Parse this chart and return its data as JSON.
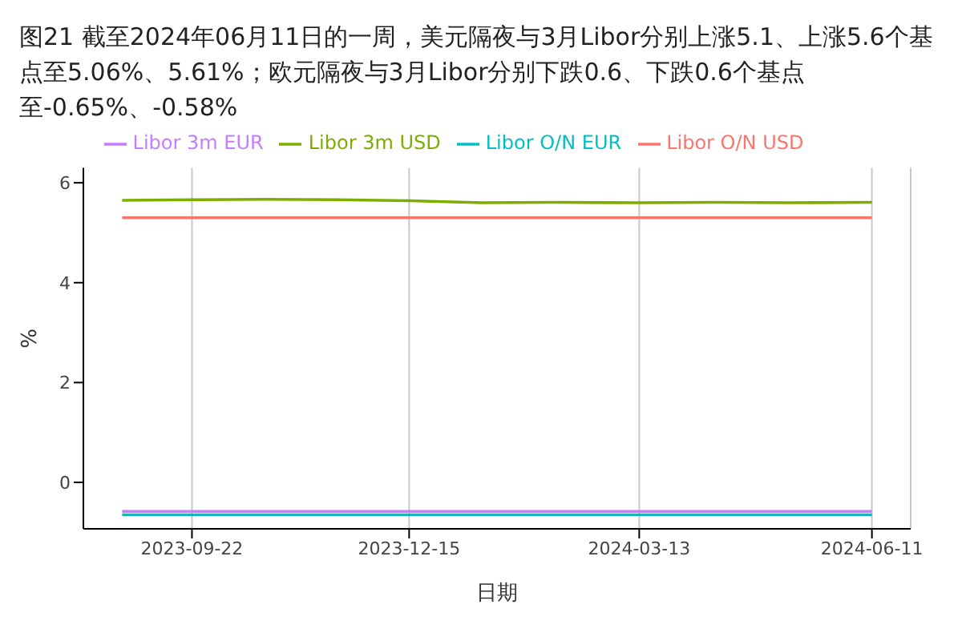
{
  "chart_data": {
    "type": "line",
    "title": "图21  截至2024年06月11日的一周，美元隔夜与3月Libor分别上涨5.1、上涨5.6个基点至5.06%、5.61%；欧元隔夜与3月Libor分别下跌0.6、下跌0.6个基点至-0.65%、-0.58%",
    "xlabel": "日期",
    "ylabel": "%",
    "x": [
      "2023-08-26",
      "2023-09-22",
      "2023-10-20",
      "2023-11-17",
      "2023-12-15",
      "2024-01-12",
      "2024-02-09",
      "2024-03-13",
      "2024-04-12",
      "2024-05-10",
      "2024-06-11"
    ],
    "series": [
      {
        "name": "Libor O/N USD",
        "color": "#f8766d",
        "values": [
          5.3,
          5.3,
          5.3,
          5.3,
          5.3,
          5.3,
          5.3,
          5.3,
          5.3,
          5.3,
          5.3
        ]
      },
      {
        "name": "Libor 3m USD",
        "color": "#7cae00",
        "values": [
          5.65,
          5.66,
          5.67,
          5.66,
          5.64,
          5.6,
          5.61,
          5.6,
          5.61,
          5.6,
          5.61
        ]
      },
      {
        "name": "Libor O/N EUR",
        "color": "#00bfc4",
        "values": [
          -0.65,
          -0.65,
          -0.65,
          -0.65,
          -0.65,
          -0.65,
          -0.65,
          -0.65,
          -0.65,
          -0.65,
          -0.65
        ]
      },
      {
        "name": "Libor 3m EUR",
        "color": "#c77cff",
        "values": [
          -0.58,
          -0.58,
          -0.58,
          -0.58,
          -0.58,
          -0.58,
          -0.58,
          -0.58,
          -0.58,
          -0.58,
          -0.58
        ]
      }
    ],
    "xlim": [
      "2023-08-11",
      "2024-06-26"
    ],
    "xticks": [
      "2023-09-22",
      "2023-12-15",
      "2024-03-13",
      "2024-06-11"
    ],
    "ylim": [
      -0.93,
      6.3
    ],
    "yticks": [
      0,
      2,
      4,
      6
    ],
    "grid": "x",
    "legend": "top",
    "marker": "none",
    "line_style": "solid"
  }
}
